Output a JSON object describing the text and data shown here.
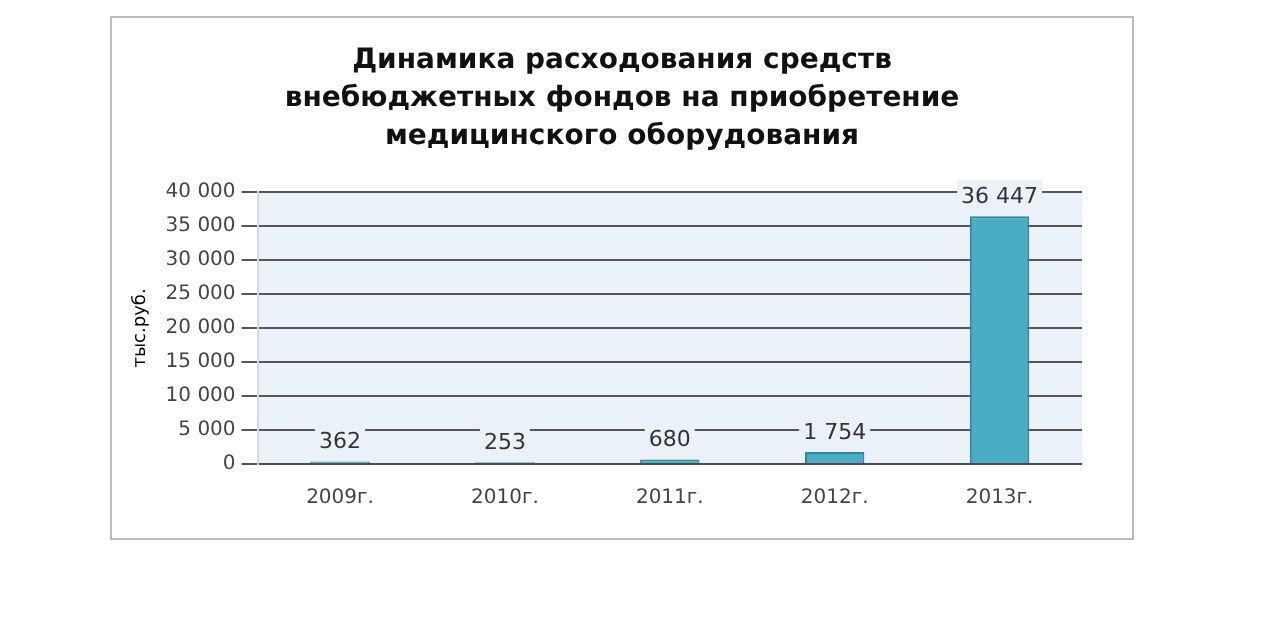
{
  "chart_data": {
    "type": "bar",
    "title": "Динамика  расходования средств внебюджетных фондов  на приобретение медицинского оборудования",
    "ylabel": "тыс.руб.",
    "categories": [
      "2009г.",
      "2010г.",
      "2011г.",
      "2012г.",
      "2013г."
    ],
    "values": [
      362,
      253,
      680,
      1754,
      36447
    ],
    "value_labels": [
      "362",
      "253",
      "680",
      "1 754",
      "36 447"
    ],
    "color": "#4bacc6",
    "ylim": [
      0,
      40000
    ],
    "yticks": [
      0,
      {
        "value": 5000,
        "label": "5 000"
      },
      {
        "value": 10000,
        "label": "10 000"
      },
      {
        "value": 15000,
        "label": "15 000"
      },
      {
        "value": 20000,
        "label": "20 000"
      },
      {
        "value": 25000,
        "label": "25 000"
      },
      {
        "value": 30000,
        "label": "30 000"
      },
      {
        "value": 35000,
        "label": "35 000"
      },
      {
        "value": 40000,
        "label": "40 000"
      }
    ],
    "grid": "y"
  }
}
